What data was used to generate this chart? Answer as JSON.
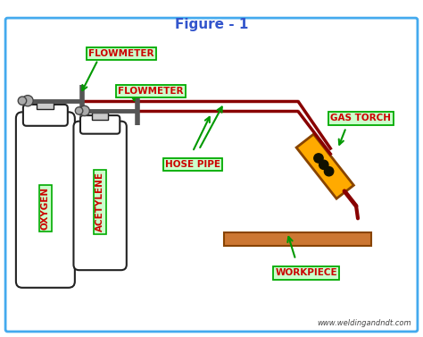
{
  "title": "Figure - 1",
  "title_color": "#3355cc",
  "title_fontsize": 11,
  "bg_color": "#ffffff",
  "border_color": "#44aaee",
  "watermark": "www.weldingandndt.com",
  "labels": {
    "flowmeter1": "FLOWMETER",
    "flowmeter2": "FLOWMETER",
    "hose_pipe": "HOSE PIPE",
    "gas_torch": "GAS TORCH",
    "workpiece": "WORKPIECE",
    "oxygen": "OXYGEN",
    "acetylene": "ACETYLENE"
  },
  "label_color": "#cc0000",
  "label_bg": "#ccffcc",
  "label_border": "#00aa00",
  "hose_color": "#880000",
  "torch_body_color": "#ffaa00",
  "torch_border_color": "#884400",
  "torch_detail_color": "#111100",
  "workpiece_color": "#cc7733",
  "workpiece_border": "#884400",
  "arrow_color": "#009900",
  "cylinder_color": "#ffffff",
  "cylinder_border": "#222222",
  "valve_color": "#666666",
  "gauge_color": "#aaaaaa",
  "regulator_color": "#555555"
}
